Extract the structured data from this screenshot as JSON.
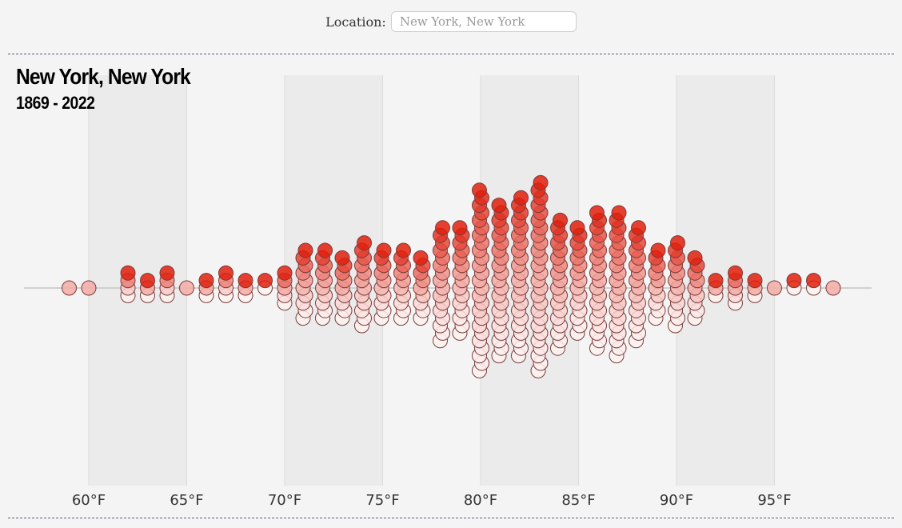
{
  "location": {
    "label": "Location:",
    "placeholder": "New York, New York"
  },
  "chart_data": {
    "type": "scatter",
    "title": "New York, New York",
    "subtitle": "1869 - 2022",
    "x_unit": "°F",
    "xlim": [
      58,
      100
    ],
    "ticks": [
      60,
      65,
      70,
      75,
      80,
      85,
      90,
      95
    ],
    "tick_labels": [
      "60°F",
      "65°F",
      "70°F",
      "75°F",
      "80°F",
      "85°F",
      "90°F",
      "95°F"
    ],
    "shaded_bands": [
      [
        60,
        65
      ],
      [
        70,
        75
      ],
      [
        80,
        85
      ],
      [
        90,
        95
      ]
    ],
    "grid": true,
    "color_scale": {
      "low": "#ffffff",
      "high": "#e01e0c"
    },
    "temps": [
      59,
      60,
      62,
      63,
      64,
      65,
      66,
      67,
      68,
      69,
      70,
      71,
      72,
      73,
      74,
      75,
      76,
      77,
      78,
      79,
      80,
      81,
      82,
      83,
      84,
      85,
      86,
      87,
      88,
      89,
      90,
      91,
      92,
      93,
      94,
      95,
      96,
      97,
      98
    ],
    "counts": [
      1,
      1,
      4,
      3,
      4,
      1,
      3,
      4,
      3,
      2,
      5,
      10,
      10,
      9,
      12,
      10,
      10,
      9,
      16,
      15,
      25,
      21,
      22,
      26,
      18,
      15,
      19,
      20,
      16,
      10,
      12,
      9,
      3,
      5,
      3,
      1,
      2,
      2,
      1
    ]
  }
}
